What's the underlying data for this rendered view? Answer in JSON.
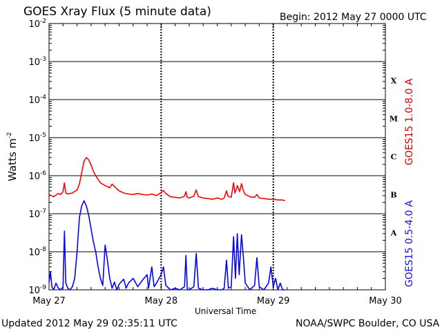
{
  "header": {
    "title": "GOES Xray Flux (5 minute data)",
    "begin": "Begin:  2012 May 27 0000 UTC"
  },
  "footer": {
    "updated": "Updated 2012 May 29 02:35:11 UTC",
    "credit": "NOAA/SWPC Boulder, CO USA"
  },
  "colors": {
    "long": "#ff0000",
    "short": "#0000ff",
    "axis": "#000000"
  },
  "chart_data": {
    "type": "line",
    "xlabel": "Universal Time",
    "ylabel": "Watts m",
    "ylabel_sup": "-2",
    "yscale": "log",
    "ylim": [
      1e-09,
      0.01
    ],
    "xlim": [
      0,
      72
    ],
    "x_units": "hours since 2012 May 27 0000 UTC",
    "x_ticks": [
      {
        "x": 0,
        "label": "May 27"
      },
      {
        "x": 24,
        "label": "May 28"
      },
      {
        "x": 48,
        "label": "May 29"
      },
      {
        "x": 72,
        "label": "May 30"
      }
    ],
    "y_ticks": [
      {
        "exp": -9,
        "label": "10",
        "sup": "-9"
      },
      {
        "exp": -8,
        "label": "10",
        "sup": "-8"
      },
      {
        "exp": -7,
        "label": "10",
        "sup": "-7"
      },
      {
        "exp": -6,
        "label": "10",
        "sup": "-6"
      },
      {
        "exp": -5,
        "label": "10",
        "sup": "-5"
      },
      {
        "exp": -4,
        "label": "10",
        "sup": "-4"
      },
      {
        "exp": -3,
        "label": "10",
        "sup": "-3"
      },
      {
        "exp": -2,
        "label": "10",
        "sup": "-2"
      }
    ],
    "flare_classes": [
      {
        "label": "A",
        "exp": -7.5
      },
      {
        "label": "B",
        "exp": -6.5
      },
      {
        "label": "C",
        "exp": -5.5
      },
      {
        "label": "M",
        "exp": -4.5
      },
      {
        "label": "X",
        "exp": -3.5
      }
    ],
    "grid": true,
    "series": [
      {
        "name": "GOES15 1.0-8.0 A",
        "color": "#ff0000",
        "points": [
          [
            0,
            3.2e-07
          ],
          [
            0.5,
            3e-07
          ],
          [
            1,
            2.8e-07
          ],
          [
            1.5,
            3.1e-07
          ],
          [
            2,
            3.4e-07
          ],
          [
            2.5,
            3.2e-07
          ],
          [
            3,
            3.8e-07
          ],
          [
            3.3,
            6.5e-07
          ],
          [
            3.6,
            3.5e-07
          ],
          [
            4,
            3.3e-07
          ],
          [
            5,
            3.5e-07
          ],
          [
            6,
            4.2e-07
          ],
          [
            6.5,
            6e-07
          ],
          [
            7,
            1.2e-06
          ],
          [
            7.5,
            2.4e-06
          ],
          [
            8,
            3e-06
          ],
          [
            8.5,
            2.6e-06
          ],
          [
            9,
            1.9e-06
          ],
          [
            9.5,
            1.3e-06
          ],
          [
            10,
            1e-06
          ],
          [
            10.5,
            8e-07
          ],
          [
            11,
            6.5e-07
          ],
          [
            12,
            5.5e-07
          ],
          [
            13,
            4.8e-07
          ],
          [
            13.5,
            6e-07
          ],
          [
            14,
            5.2e-07
          ],
          [
            15,
            4e-07
          ],
          [
            16,
            3.5e-07
          ],
          [
            17,
            3.3e-07
          ],
          [
            18,
            3.2e-07
          ],
          [
            19,
            3.4e-07
          ],
          [
            20,
            3.2e-07
          ],
          [
            21,
            3.1e-07
          ],
          [
            22,
            3.3e-07
          ],
          [
            23,
            3e-07
          ],
          [
            24,
            3.6e-07
          ],
          [
            24.5,
            4.1e-07
          ],
          [
            25,
            3.4e-07
          ],
          [
            26,
            2.8e-07
          ],
          [
            27,
            2.7e-07
          ],
          [
            28,
            2.6e-07
          ],
          [
            29,
            2.9e-07
          ],
          [
            29.3,
            3.8e-07
          ],
          [
            29.6,
            2.7e-07
          ],
          [
            30,
            2.6e-07
          ],
          [
            31,
            2.9e-07
          ],
          [
            31.5,
            4.2e-07
          ],
          [
            32,
            2.8e-07
          ],
          [
            33,
            2.6e-07
          ],
          [
            34,
            2.5e-07
          ],
          [
            35,
            2.4e-07
          ],
          [
            36,
            2.6e-07
          ],
          [
            37,
            2.4e-07
          ],
          [
            37.5,
            2.6e-07
          ],
          [
            38,
            4e-07
          ],
          [
            38.3,
            2.9e-07
          ],
          [
            39,
            2.7e-07
          ],
          [
            39.5,
            6.5e-07
          ],
          [
            39.8,
            3.5e-07
          ],
          [
            40.3,
            5.5e-07
          ],
          [
            40.8,
            3.8e-07
          ],
          [
            41.2,
            6.2e-07
          ],
          [
            41.6,
            4e-07
          ],
          [
            42,
            3.2e-07
          ],
          [
            43,
            2.8e-07
          ],
          [
            44,
            2.7e-07
          ],
          [
            44.5,
            3.2e-07
          ],
          [
            45,
            2.6e-07
          ],
          [
            46,
            2.5e-07
          ],
          [
            47,
            2.4e-07
          ],
          [
            48,
            2.4e-07
          ],
          [
            49,
            2.3e-07
          ],
          [
            50,
            2.3e-07
          ],
          [
            50.5,
            2.2e-07
          ]
        ]
      },
      {
        "name": "GOES15 0.5-4.0 A",
        "color": "#0000ff",
        "points": [
          [
            0,
            1.6e-09
          ],
          [
            0.3,
            3e-09
          ],
          [
            0.6,
            1.2e-09
          ],
          [
            1,
            1e-09
          ],
          [
            1.5,
            1.5e-09
          ],
          [
            2,
            1.1e-09
          ],
          [
            2.5,
            1e-09
          ],
          [
            3,
            1.2e-09
          ],
          [
            3.3,
            3.5e-08
          ],
          [
            3.6,
            1.5e-09
          ],
          [
            4,
            1.1e-09
          ],
          [
            4.5,
            1e-09
          ],
          [
            5,
            1.2e-09
          ],
          [
            5.5,
            2e-09
          ],
          [
            6,
            1e-08
          ],
          [
            6.5,
            8e-08
          ],
          [
            7,
            1.6e-07
          ],
          [
            7.5,
            2.2e-07
          ],
          [
            8,
            1.6e-07
          ],
          [
            8.5,
            9e-08
          ],
          [
            9,
            4e-08
          ],
          [
            9.5,
            1.8e-08
          ],
          [
            10,
            1e-08
          ],
          [
            10.5,
            4e-09
          ],
          [
            11,
            2e-09
          ],
          [
            11.5,
            1.3e-09
          ],
          [
            12,
            1.5e-08
          ],
          [
            12.5,
            6e-09
          ],
          [
            13,
            2e-09
          ],
          [
            13.5,
            1.1e-09
          ],
          [
            14,
            1.6e-09
          ],
          [
            14.5,
            1e-09
          ],
          [
            15,
            1.4e-09
          ],
          [
            16,
            1.9e-09
          ],
          [
            16.5,
            1.1e-09
          ],
          [
            17,
            1.5e-09
          ],
          [
            18,
            2e-09
          ],
          [
            19,
            1.2e-09
          ],
          [
            20,
            1.8e-09
          ],
          [
            21,
            2.5e-09
          ],
          [
            21.3,
            1.1e-09
          ],
          [
            22,
            4e-09
          ],
          [
            22.5,
            1.2e-09
          ],
          [
            23,
            1.5e-09
          ],
          [
            24,
            2.5e-09
          ],
          [
            24.5,
            4e-09
          ],
          [
            25,
            1.3e-09
          ],
          [
            26,
            1e-09
          ],
          [
            27,
            1.1e-09
          ],
          [
            28,
            1e-09
          ],
          [
            29,
            1.2e-09
          ],
          [
            29.3,
            8e-09
          ],
          [
            29.6,
            1e-09
          ],
          [
            30,
            1e-09
          ],
          [
            31,
            1.2e-09
          ],
          [
            31.5,
            9e-09
          ],
          [
            32,
            1.1e-09
          ],
          [
            33,
            1e-09
          ],
          [
            34,
            1e-09
          ],
          [
            35,
            1.1e-09
          ],
          [
            36,
            1e-09
          ],
          [
            37,
            1e-09
          ],
          [
            37.5,
            1.1e-09
          ],
          [
            38,
            6e-09
          ],
          [
            38.4,
            1.1e-09
          ],
          [
            39,
            1.2e-09
          ],
          [
            39.5,
            2.5e-08
          ],
          [
            39.9,
            2e-09
          ],
          [
            40.3,
            3e-08
          ],
          [
            40.7,
            2.5e-09
          ],
          [
            41.2,
            2.8e-08
          ],
          [
            41.7,
            5e-09
          ],
          [
            42,
            1.5e-09
          ],
          [
            43,
            1e-09
          ],
          [
            44,
            1.3e-09
          ],
          [
            44.5,
            7e-09
          ],
          [
            45,
            1.2e-09
          ],
          [
            46,
            1e-09
          ],
          [
            47,
            1.5e-09
          ],
          [
            47.5,
            4e-09
          ],
          [
            48,
            1.2e-09
          ],
          [
            48.5,
            2e-09
          ],
          [
            49,
            1e-09
          ],
          [
            49.5,
            1.5e-09
          ],
          [
            50,
            1e-09
          ],
          [
            50.5,
            1e-09
          ]
        ]
      }
    ]
  }
}
